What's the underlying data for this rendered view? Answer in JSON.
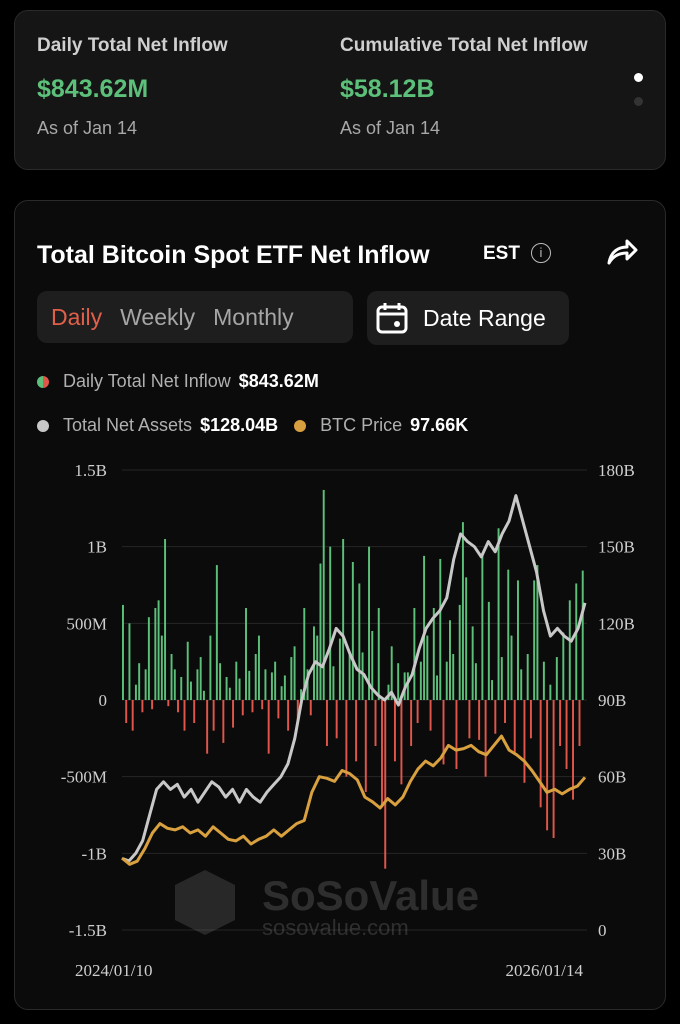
{
  "summary": {
    "daily": {
      "label": "Daily Total Net Inflow",
      "value": "$843.62M",
      "asof": "As of Jan 14"
    },
    "cumulative": {
      "label": "Cumulative Total Net Inflow",
      "value": "$58.12B",
      "asof": "As of Jan 14"
    }
  },
  "chart_header": {
    "title": "Total Bitcoin Spot ETF Net Inflow",
    "timezone": "EST"
  },
  "tabs": [
    "Daily",
    "Weekly",
    "Monthly"
  ],
  "active_tab": "Daily",
  "date_range_label": "Date Range",
  "legend": {
    "inflow": {
      "label": "Daily Total Net Inflow",
      "value": "$843.62M"
    },
    "assets": {
      "label": "Total Net Assets",
      "value": "$128.04B"
    },
    "btc": {
      "label": "BTC Price",
      "value": "97.66K"
    }
  },
  "colors": {
    "positive": "#5cc07a",
    "negative": "#e0564a",
    "assets": "#c8c8c8",
    "btc": "#d9a03f",
    "active_tab": "#e0604a"
  },
  "watermark": {
    "brand": "SoSoValue",
    "site": "sosovalue.com"
  },
  "chart_data": {
    "type": "bar+line",
    "x_start": "2024/01/10",
    "x_end": "2026/01/14",
    "left_axis": {
      "ticks": [
        "1.5B",
        "1B",
        "500M",
        "0",
        "-500M",
        "-1B",
        "-1.5B"
      ],
      "range_millions": [
        -1500,
        1500
      ]
    },
    "right_axis": {
      "ticks": [
        "180B",
        "150B",
        "120B",
        "90B",
        "60B",
        "30B",
        "0"
      ],
      "range_billions": [
        0,
        180
      ]
    },
    "inflow_millions": [
      620,
      -150,
      500,
      -200,
      100,
      240,
      -80,
      200,
      540,
      -60,
      600,
      650,
      420,
      1050,
      -40,
      300,
      200,
      -80,
      150,
      -200,
      380,
      120,
      -150,
      200,
      280,
      60,
      -350,
      420,
      -200,
      880,
      240,
      -280,
      150,
      80,
      -180,
      250,
      140,
      -100,
      600,
      190,
      -80,
      300,
      420,
      -60,
      200,
      -350,
      180,
      250,
      -120,
      90,
      160,
      -200,
      280,
      350,
      -150,
      70,
      600,
      200,
      -100,
      480,
      420,
      890,
      1370,
      -300,
      1000,
      220,
      -250,
      400,
      1050,
      -500,
      300,
      900,
      -400,
      760,
      310,
      -600,
      1000,
      450,
      -300,
      600,
      -700,
      -1100,
      100,
      350,
      -400,
      240,
      -550,
      180,
      180,
      -300,
      600,
      -150,
      250,
      940,
      420,
      -200,
      600,
      160,
      920,
      -420,
      250,
      520,
      300,
      -450,
      620,
      1160,
      800,
      -250,
      480,
      240,
      -260,
      950,
      -500,
      640,
      130,
      -220,
      1120,
      280,
      -150,
      850,
      420,
      -350,
      780,
      200,
      -540,
      300,
      -250,
      780,
      880,
      -700,
      250,
      -850,
      100,
      -900,
      280,
      -300,
      440,
      -450,
      650,
      -650,
      760,
      -300,
      844
    ],
    "total_net_assets_billions": [
      28,
      27,
      30,
      35,
      45,
      55,
      58,
      55,
      57,
      52,
      55,
      50,
      54,
      58,
      56,
      52,
      55,
      50,
      55,
      52,
      50,
      54,
      57,
      60,
      65,
      75,
      90,
      100,
      105,
      103,
      110,
      118,
      115,
      108,
      102,
      100,
      95,
      92,
      90,
      93,
      88,
      95,
      100,
      110,
      118,
      122,
      125,
      130,
      145,
      155,
      152,
      150,
      146,
      152,
      148,
      155,
      160,
      170,
      160,
      150,
      140,
      125,
      115,
      118,
      115,
      113,
      118,
      128
    ],
    "btc_price_k": [
      46,
      42,
      44,
      52,
      62,
      68,
      65,
      64,
      66,
      62,
      64,
      60,
      66,
      62,
      58,
      57,
      60,
      55,
      58,
      60,
      64,
      60,
      64,
      68,
      70,
      88,
      98,
      97,
      95,
      102,
      100,
      96,
      85,
      82,
      78,
      84,
      80,
      85,
      95,
      103,
      108,
      105,
      110,
      118,
      115,
      116,
      118,
      114,
      112,
      118,
      124,
      115,
      112,
      108,
      102,
      95,
      88,
      90,
      87,
      90,
      92,
      97.66
    ]
  }
}
